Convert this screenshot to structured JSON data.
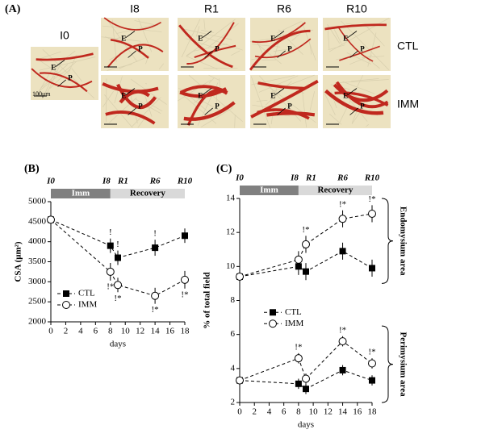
{
  "panel_a": {
    "label": "(A)",
    "control_title": "I0",
    "columns": [
      "I8",
      "R1",
      "R6",
      "R10"
    ],
    "rows": [
      "CTL",
      "IMM"
    ],
    "markers": [
      "E",
      "P"
    ],
    "scale": "100μm"
  },
  "chart_data": [
    {
      "type": "line",
      "panel": "(B)",
      "ylabel": "CSA (μm²)",
      "xlabel": "days",
      "x": [
        0,
        8,
        9,
        14,
        18
      ],
      "xlim": [
        0,
        18
      ],
      "xticks": [
        0,
        2,
        4,
        6,
        8,
        10,
        12,
        14,
        16,
        18
      ],
      "ylim": [
        2000,
        5000
      ],
      "yticks": [
        2000,
        2500,
        3000,
        3500,
        4000,
        4500,
        5000
      ],
      "legend": "lower left",
      "label_side": "ctl-above-imm-below",
      "timeline": {
        "labels": [
          "I0",
          "I8",
          "R1",
          "R6",
          "R10"
        ],
        "phases": [
          {
            "name": "Imm",
            "from": 0,
            "to": 8,
            "color": "#808080"
          },
          {
            "name": "Recovery",
            "from": 8,
            "to": 18,
            "color": "#d9d9d9"
          }
        ]
      },
      "series": [
        {
          "name": "CTL",
          "color": "#000000",
          "marker": "square",
          "values": [
            4550,
            3900,
            3600,
            3850,
            4150
          ],
          "errors": [
            200,
            180,
            180,
            200,
            180
          ],
          "point_labels": [
            null,
            "!",
            "!",
            "!",
            null
          ]
        },
        {
          "name": "IMM",
          "color": "#000000",
          "marker": "circle",
          "values": [
            4550,
            3250,
            2920,
            2650,
            3050
          ],
          "errors": [
            200,
            220,
            180,
            200,
            220
          ],
          "point_labels": [
            null,
            "!*",
            "!*",
            "!*",
            "!*"
          ]
        }
      ]
    },
    {
      "type": "line",
      "panel": "(C)",
      "ylabel": "% of total field",
      "xlabel": "days",
      "x": [
        0,
        8,
        9,
        14,
        18
      ],
      "xlim": [
        0,
        18
      ],
      "xticks": [
        0,
        2,
        4,
        6,
        8,
        10,
        12,
        14,
        16,
        18
      ],
      "ylim": [
        2,
        14
      ],
      "yticks": [
        2,
        4,
        6,
        8,
        10,
        12,
        14
      ],
      "legend": "center left",
      "label_side": "above",
      "timeline": {
        "labels": [
          "I0",
          "I8",
          "R1",
          "R6",
          "R10"
        ],
        "phases": [
          {
            "name": "Imm",
            "from": 0,
            "to": 8,
            "color": "#808080"
          },
          {
            "name": "Recovery",
            "from": 8,
            "to": 18,
            "color": "#d9d9d9"
          }
        ]
      },
      "brackets": [
        {
          "text": "Endomysium area",
          "from": 9,
          "to": 14
        },
        {
          "text": "Perimysium area",
          "from": 2,
          "to": 6.5
        }
      ],
      "series": [
        {
          "name": "CTL",
          "color": "#000000",
          "marker": "square",
          "values": [
            9.4,
            10.0,
            9.7,
            10.9,
            9.9
          ],
          "errors": [
            0.4,
            0.5,
            0.5,
            0.5,
            0.5
          ],
          "point_labels": [
            null,
            null,
            null,
            null,
            null
          ]
        },
        {
          "name": "IMM",
          "color": "#000000",
          "marker": "circle",
          "values": [
            9.4,
            10.4,
            11.3,
            12.8,
            13.1
          ],
          "errors": [
            0.4,
            0.5,
            0.5,
            0.5,
            0.5
          ],
          "point_labels": [
            null,
            null,
            "!*",
            "!*",
            "!*"
          ]
        },
        {
          "name": "CTL",
          "color": "#000000",
          "marker": "square",
          "values": [
            3.3,
            3.1,
            2.8,
            3.9,
            3.3
          ],
          "errors": [
            0.3,
            0.3,
            0.3,
            0.3,
            0.3
          ],
          "point_labels": [
            null,
            null,
            null,
            null,
            null
          ]
        },
        {
          "name": "IMM",
          "color": "#000000",
          "marker": "circle",
          "values": [
            3.3,
            4.6,
            3.4,
            5.6,
            4.3
          ],
          "errors": [
            0.3,
            0.3,
            0.3,
            0.3,
            0.3
          ],
          "point_labels": [
            null,
            "!*",
            null,
            "!*",
            "!*"
          ]
        }
      ]
    }
  ]
}
